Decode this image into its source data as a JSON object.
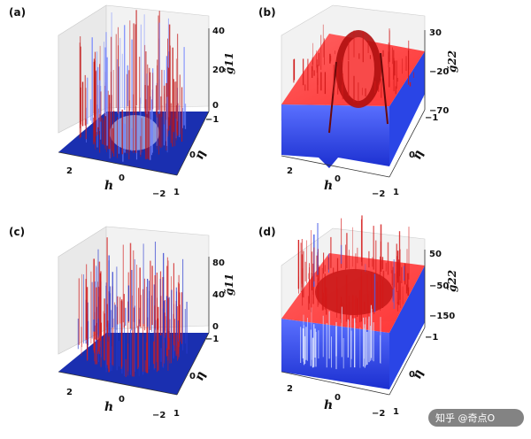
{
  "figure": {
    "watermark": "知乎 @奇点O"
  },
  "chart_data": [
    {
      "panel": "(a)",
      "type": "surface3d",
      "xlabel": "h",
      "ylabel": "η",
      "zlabel": "g̃11",
      "x_ticks": [
        "2",
        "0",
        "−2"
      ],
      "y_ticks": [
        "−1",
        "0",
        "1"
      ],
      "z_ticks": [
        "40",
        "20",
        "0"
      ],
      "zlim": [
        0,
        40
      ],
      "colors": {
        "high": "#e02020",
        "low": "#1a2fb0"
      },
      "data_description": "flat blue plane at 0 with tall red and blue spikes along closed loop features"
    },
    {
      "panel": "(b)",
      "type": "surface3d",
      "xlabel": "h",
      "ylabel": "η",
      "zlabel": "g̃22",
      "x_ticks": [
        "2",
        "0",
        "−2"
      ],
      "y_ticks": [
        "−1",
        "0",
        "1"
      ],
      "z_ticks": [
        "30",
        "−20",
        "−70"
      ],
      "zlim": [
        -70,
        30
      ],
      "colors": {
        "high": "#ff3030",
        "low": "#2440e0"
      }
    },
    {
      "panel": "(c)",
      "type": "surface3d",
      "xlabel": "h",
      "ylabel": "η",
      "zlabel": "g̃11",
      "x_ticks": [
        "2",
        "0",
        "−2"
      ],
      "y_ticks": [
        "−1",
        "0",
        "1"
      ],
      "z_ticks": [
        "80",
        "40",
        "0"
      ],
      "zlim": [
        0,
        80
      ],
      "colors": {
        "high": "#e02020",
        "low": "#1a2fb0"
      }
    },
    {
      "panel": "(d)",
      "type": "surface3d",
      "xlabel": "h",
      "ylabel": "η",
      "zlabel": "g̃22",
      "x_ticks": [
        "2",
        "0",
        "−2"
      ],
      "y_ticks": [
        "−1",
        "0",
        "1"
      ],
      "z_ticks": [
        "50",
        "−50",
        "−150"
      ],
      "zlim": [
        -150,
        50
      ],
      "colors": {
        "high": "#ff3030",
        "low": "#2440e0"
      }
    }
  ]
}
